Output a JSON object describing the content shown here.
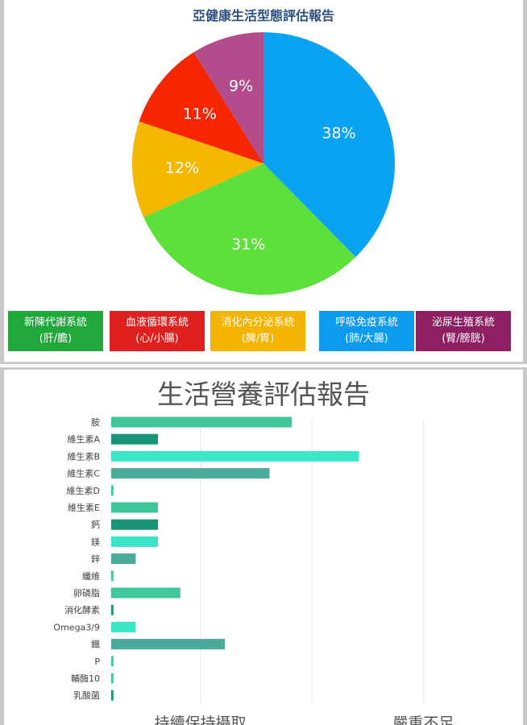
{
  "chart_data": [
    {
      "type": "pie",
      "title": "亞健康生活型態評估報告",
      "slices": [
        {
          "label": "呼吸免疫系統",
          "sub": "(肺/大腸)",
          "value": 38,
          "color": "#0aa3f2"
        },
        {
          "label": "新陳代謝系統",
          "sub": "(肝/膽)",
          "value": 31,
          "color": "#5ee03c"
        },
        {
          "label": "消化內分泌系統",
          "sub": "(脾/胃)",
          "value": 12,
          "color": "#f5b800"
        },
        {
          "label": "血液循環系統",
          "sub": "(心/小腸)",
          "value": 11,
          "color": "#f52600"
        },
        {
          "label": "泌尿生殖系統",
          "sub": "(腎/膀胱)",
          "value": 9,
          "color": "#b24c8c"
        }
      ],
      "value_labels": [
        "38%",
        "31%",
        "12%",
        "11%",
        "9%"
      ],
      "legend": [
        {
          "label": "新陳代謝系統",
          "sub": "(肝/膽)",
          "color": "#20a83a"
        },
        {
          "label": "血液循環系統",
          "sub": "(心/小腸)",
          "color": "#e01f1f"
        },
        {
          "label": "消化內分泌系統",
          "sub": "(脾/胃)",
          "color": "#f5b400"
        },
        {
          "label": "呼吸免疫系統",
          "sub": "(肺/大腸)",
          "color": "#0d9bf0"
        },
        {
          "label": "泌尿生殖系統",
          "sub": "(腎/膀胱)",
          "color": "#8e1f62"
        }
      ]
    },
    {
      "type": "bar",
      "orientation": "horizontal",
      "title": "生活營養評估報告",
      "categories": [
        "胺",
        "維生素A",
        "維生素B",
        "維生素C",
        "維生素D",
        "維生素E",
        "鈣",
        "鎂",
        "鋅",
        "纖維",
        "卵磷脂",
        "消化酵素",
        "Omega3/9",
        "鐵",
        "P",
        "輔酶10",
        "乳酸菌"
      ],
      "values": [
        81,
        21,
        111,
        71,
        1,
        21,
        21,
        21,
        11,
        1,
        31,
        1,
        11,
        51,
        1,
        1,
        1
      ],
      "colors": [
        "#3fc79a",
        "#199476",
        "#3ae6c7",
        "#4aab9b",
        "#3fc79a",
        "#3fc79a",
        "#199476",
        "#3ae6c7",
        "#4aab9b",
        "#3fc79a",
        "#3fc79a",
        "#199476",
        "#3ae6c7",
        "#4aab9b",
        "#3fc79a",
        "#3fc79a",
        "#199476"
      ],
      "xlim": [
        0,
        150
      ],
      "grid_values": [
        40,
        90,
        140
      ],
      "axis_labels": [
        "持續保持攝取",
        "嚴重不足"
      ],
      "axis_label_positions": [
        40,
        140
      ]
    }
  ]
}
